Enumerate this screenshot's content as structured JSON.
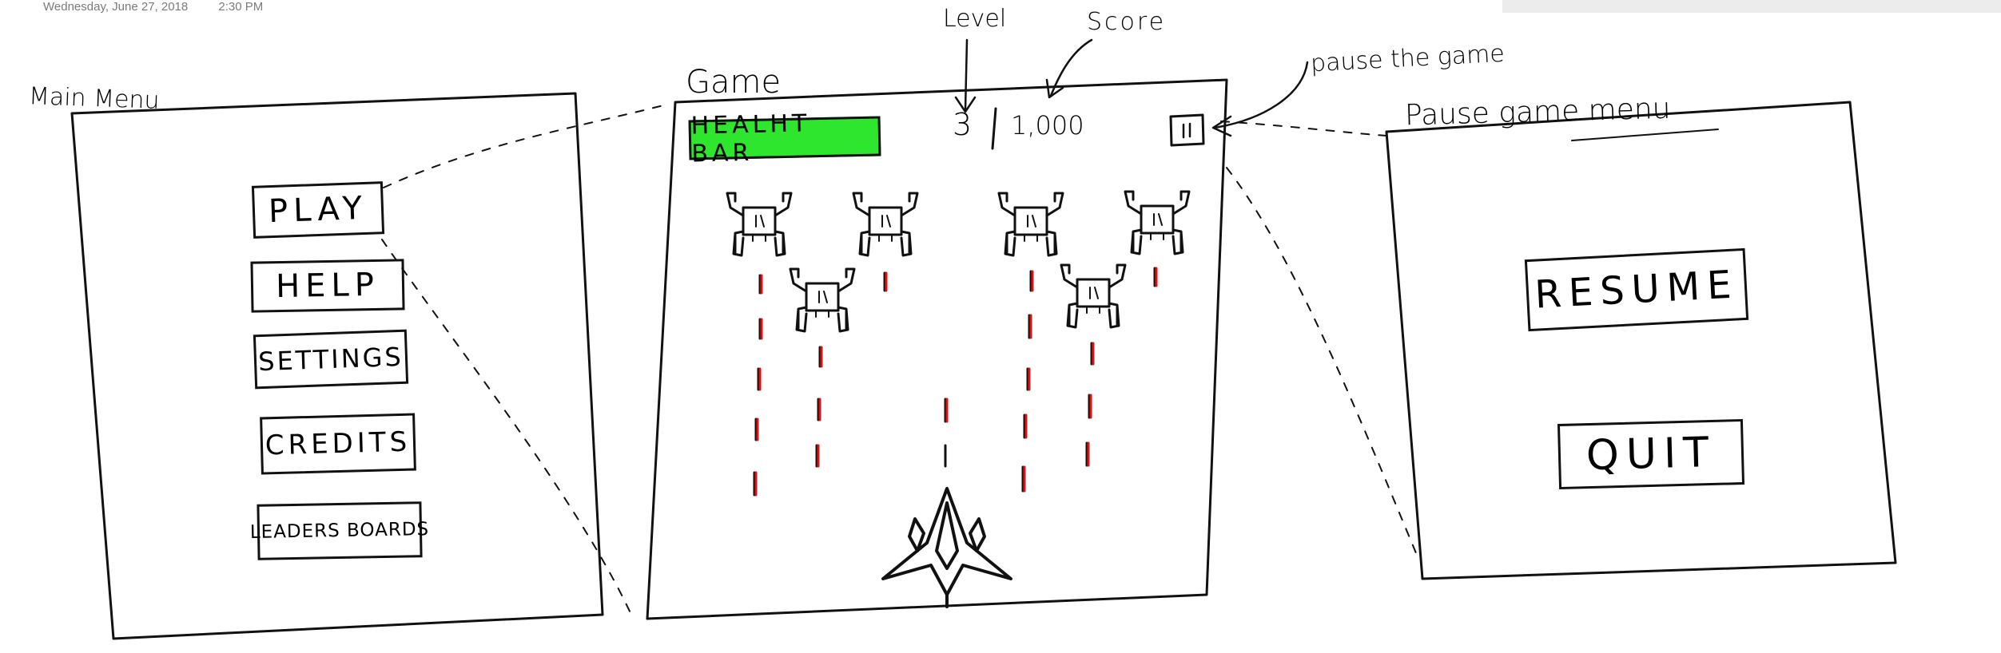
{
  "meta": {
    "date": "Wednesday, June 27, 2018",
    "time": "2:30 PM"
  },
  "colors": {
    "health_bar": "#2ee62e",
    "bullet": "#e01010",
    "ink": "#111111"
  },
  "main_menu": {
    "title": "Main Menu",
    "buttons": [
      "PLAY",
      "HELP",
      "SETTINGS",
      "CREDITS",
      "LEADERS BOARDS"
    ]
  },
  "game": {
    "title": "Game",
    "health_bar_label": "HEALHT BAR",
    "level": "3",
    "score": "1,000",
    "pause_icon": "pause-icon",
    "enemy_icon": "alien-ship-icon",
    "player_icon": "spaceship-icon"
  },
  "annotations": {
    "level": "Level",
    "score": "Score",
    "pause": "pause the game"
  },
  "pause_menu": {
    "title": "Pause game menu",
    "buttons": [
      "RESUME",
      "QUIT"
    ]
  }
}
